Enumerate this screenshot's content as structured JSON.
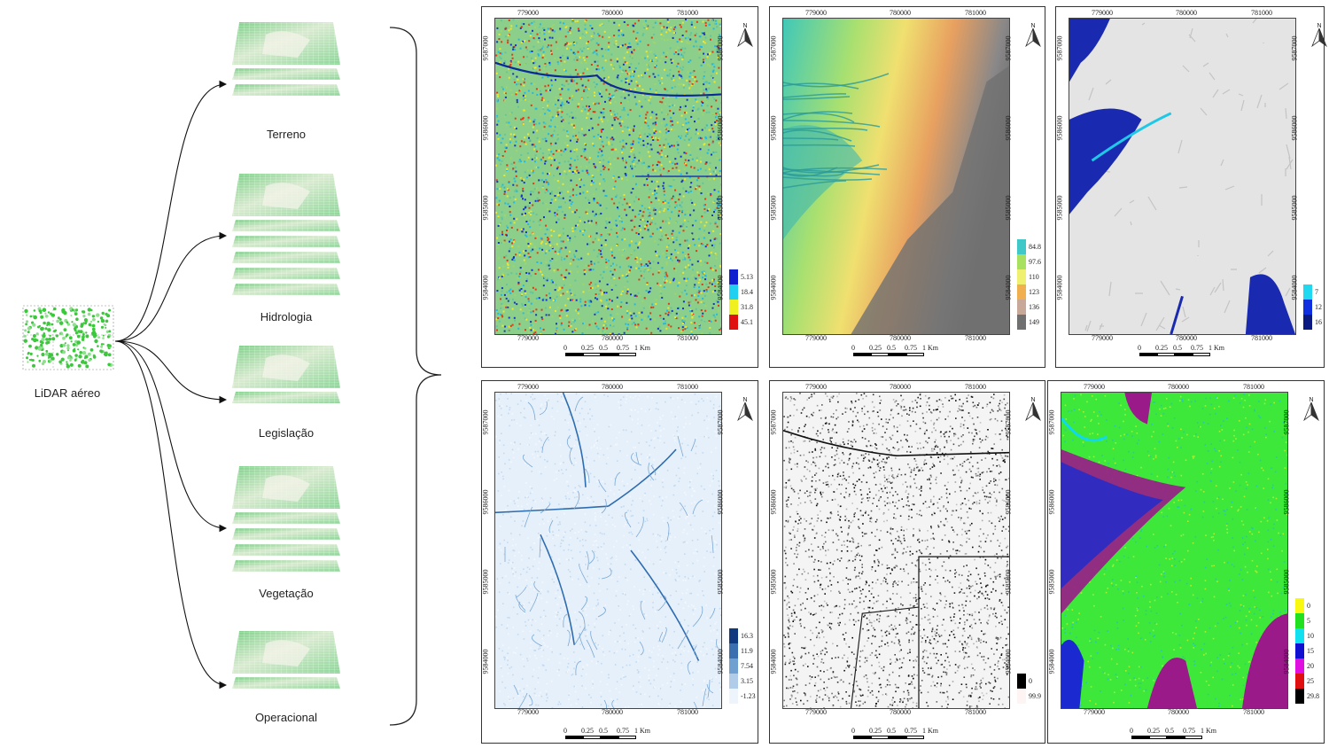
{
  "source": {
    "label": "LiDAR aéreo"
  },
  "layers": [
    {
      "label": "Terreno",
      "sheets": 3
    },
    {
      "label": "Hidrologia",
      "sheets": 6
    },
    {
      "label": "Legislação",
      "sheets": 2
    },
    {
      "label": "Vegetação",
      "sheets": 5
    },
    {
      "label": "Operacional",
      "sheets": 2
    }
  ],
  "maps": [
    {
      "id": "m1",
      "style": "speckle-jet",
      "legend": [
        "5.13",
        "18.4",
        "31.8",
        "45.1"
      ],
      "legend_colors": [
        "#1020d0",
        "#20d0f0",
        "#f0f020",
        "#e01010"
      ]
    },
    {
      "id": "m2",
      "style": "elevation",
      "legend": [
        "84.8",
        "97.6",
        "110",
        "123",
        "136",
        "149"
      ],
      "legend_colors": [
        "#40c8c8",
        "#a8e060",
        "#f0f070",
        "#f0b050",
        "#c8a898",
        "#707070"
      ]
    },
    {
      "id": "m3",
      "style": "hydro",
      "legend": [
        "7",
        "12",
        "16"
      ],
      "legend_colors": [
        "#20d8f0",
        "#1030e0",
        "#0a1a80"
      ]
    },
    {
      "id": "m4",
      "style": "drainage",
      "legend": [
        "16.3",
        "11.9",
        "7.54",
        "3.15",
        "-1.23"
      ],
      "legend_colors": [
        "#103a80",
        "#3a70b0",
        "#70a0d0",
        "#b0cce8",
        "#eef4fb"
      ]
    },
    {
      "id": "m5",
      "style": "grayscale",
      "legend": [
        "0",
        "99.9"
      ],
      "legend_colors": [
        "#000000",
        "#fff4f4"
      ]
    },
    {
      "id": "m6",
      "style": "vegetation",
      "legend": [
        "0",
        "5",
        "10",
        "15",
        "20",
        "25",
        "29.8"
      ],
      "legend_colors": [
        "#f8f810",
        "#20e020",
        "#10e0f0",
        "#1010d0",
        "#e010e0",
        "#e01010",
        "#000000"
      ]
    }
  ],
  "coords": {
    "x_ticks": [
      "779000",
      "780000",
      "781000"
    ],
    "y_ticks": [
      "9587000",
      "9586000",
      "9585000",
      "9584000"
    ],
    "scale_ticks": [
      "0",
      "0.25",
      "0.5",
      "0.75",
      "1 Km"
    ],
    "north": "N"
  }
}
